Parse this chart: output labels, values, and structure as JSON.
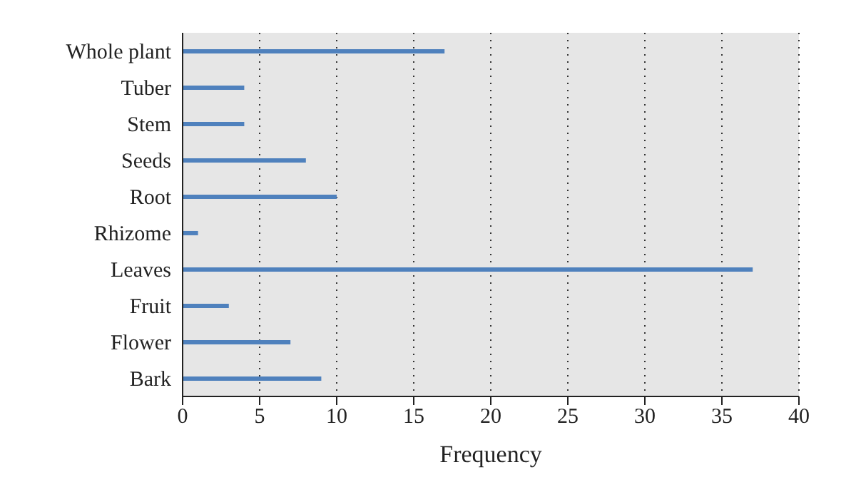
{
  "chart_data": {
    "type": "bar",
    "orientation": "horizontal",
    "xlabel": "Frequency",
    "categories": [
      "Whole plant",
      "Tuber",
      "Stem",
      "Seeds",
      "Root",
      "Rhizome",
      "Leaves",
      "Fruit",
      "Flower",
      "Bark"
    ],
    "values": [
      17,
      4,
      4,
      8,
      10,
      1,
      37,
      3,
      7,
      9
    ],
    "color": "#4f81bd",
    "xlim": [
      0,
      40
    ],
    "xticks": [
      0,
      5,
      10,
      15,
      20,
      25,
      30,
      35,
      40
    ],
    "grid": "x"
  }
}
